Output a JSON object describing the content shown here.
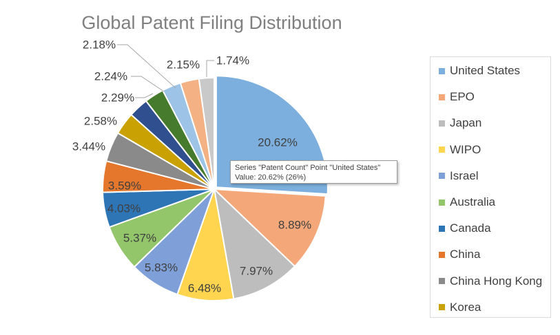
{
  "chart_data": {
    "type": "pie",
    "title": "Global Patent Filing Distribution",
    "series_name": "Patent Count",
    "slices": [
      {
        "label": "United States",
        "value": 20.62,
        "value_label": "20.62%",
        "color": "#7cafdd"
      },
      {
        "label": "EPO",
        "value": 8.89,
        "value_label": "8.89%",
        "color": "#f4a778"
      },
      {
        "label": "Japan",
        "value": 7.97,
        "value_label": "7.97%",
        "color": "#bdbdbd"
      },
      {
        "label": "WIPO",
        "value": 6.48,
        "value_label": "6.48%",
        "color": "#ffd44f"
      },
      {
        "label": "Israel",
        "value": 5.83,
        "value_label": "5.83%",
        "color": "#7f9fd9"
      },
      {
        "label": "Australia",
        "value": 5.37,
        "value_label": "5.37%",
        "color": "#93c56a"
      },
      {
        "label": "Canada",
        "value": 4.03,
        "value_label": "4.03%",
        "color": "#2e75b6"
      },
      {
        "label": "China",
        "value": 3.59,
        "value_label": "3.59%",
        "color": "#e5772d"
      },
      {
        "label": "China Hong Kong",
        "value": 3.44,
        "value_label": "3.44%",
        "color": "#8a8a8a"
      },
      {
        "label": "Korea",
        "value": 2.58,
        "value_label": "2.58%",
        "color": "#c9a103"
      },
      {
        "label": "",
        "value": 2.29,
        "value_label": "2.29%",
        "color": "#2f4f8f"
      },
      {
        "label": "",
        "value": 2.24,
        "value_label": "2.24%",
        "color": "#467a2c"
      },
      {
        "label": "",
        "value": 2.18,
        "value_label": "2.18%",
        "color": "#9dc3e6"
      },
      {
        "label": "",
        "value": 2.15,
        "value_label": "2.15%",
        "color": "#f4b183"
      },
      {
        "label": "",
        "value": 1.74,
        "value_label": "1.74%",
        "color": "#c9c9c9"
      }
    ],
    "legend_entries": [
      "United States",
      "EPO",
      "Japan",
      "WIPO",
      "Israel",
      "Australia",
      "Canada",
      "China",
      "China Hong Kong",
      "Korea"
    ],
    "legend_position": "right"
  },
  "tooltip": {
    "line1": "Series \"Patent Count\" Point \"United States\"",
    "line2": "Value: 20.62% (26%)"
  }
}
